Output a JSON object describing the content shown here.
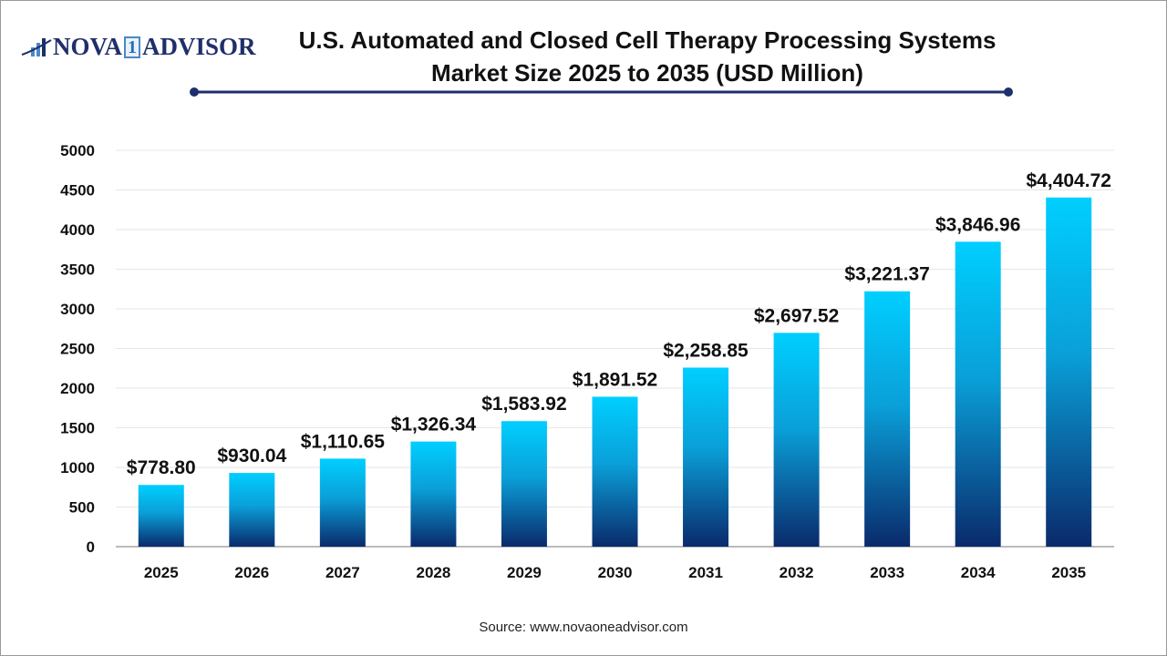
{
  "logo": {
    "text_left": "NOVA",
    "text_mark": "1",
    "text_right": "ADVISOR"
  },
  "source": "Source: www.novaoneadvisor.com",
  "colors": {
    "bar_top": "#00cfff",
    "bar_bottom": "#0a2a6b",
    "title_line": "#1f2f6b",
    "grid": "#e6e6e6",
    "axis": "#bbbbbb"
  },
  "chart_data": {
    "type": "bar",
    "title": "U.S. Automated and Closed Cell Therapy Processing Systems Market Size 2025 to 2035  (USD Million)",
    "title_lines": [
      "U.S. Automated and Closed Cell Therapy Processing Systems",
      "Market Size 2025 to 2035  (USD Million)"
    ],
    "categories": [
      "2025",
      "2026",
      "2027",
      "2028",
      "2029",
      "2030",
      "2031",
      "2032",
      "2033",
      "2034",
      "2035"
    ],
    "values": [
      778.8,
      930.04,
      1110.65,
      1326.34,
      1583.92,
      1891.52,
      2258.85,
      2697.52,
      3221.37,
      3846.96,
      4404.72
    ],
    "data_labels": [
      "$778.80",
      "$930.04",
      "$1,110.65",
      "$1,326.34",
      "$1,583.92",
      "$1,891.52",
      "$2,258.85",
      "$2,697.52",
      "$3,221.37",
      "$3,846.96",
      "$4,404.72"
    ],
    "yticks": [
      0,
      500,
      1000,
      1500,
      2000,
      2500,
      3000,
      3500,
      4000,
      4500,
      5000
    ],
    "ylim": [
      0,
      5000
    ],
    "xlabel": "",
    "ylabel": "",
    "grid": true,
    "legend": "none"
  }
}
